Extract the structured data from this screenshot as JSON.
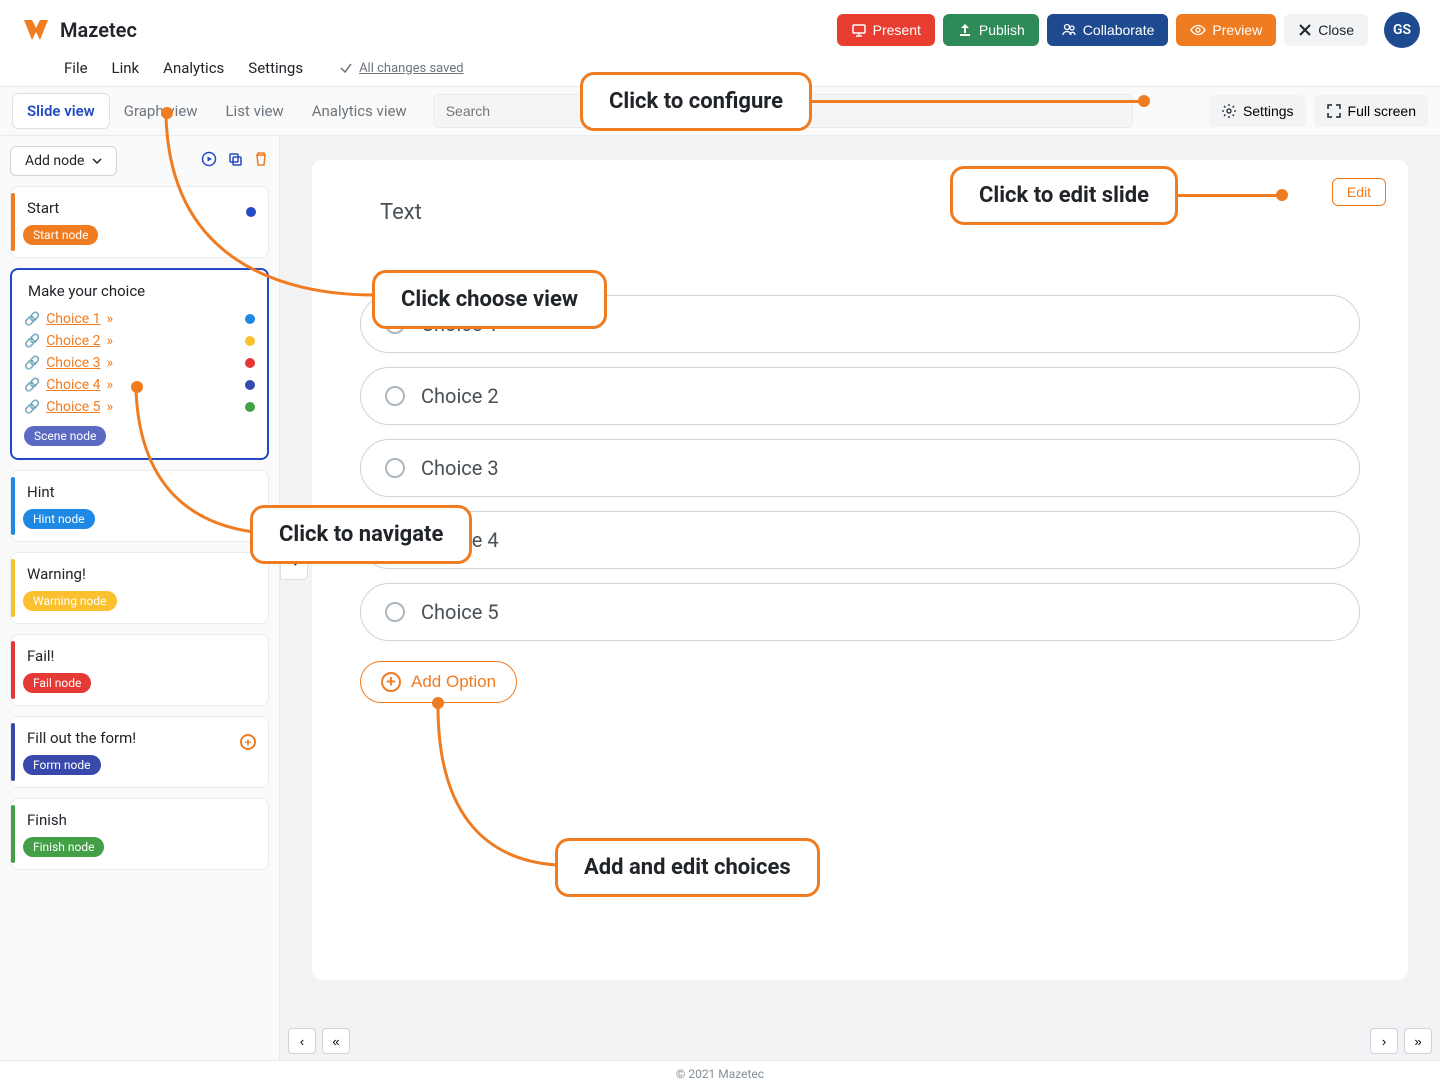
{
  "brand": "Mazetec",
  "topButtons": {
    "present": "Present",
    "publish": "Publish",
    "collaborate": "Collaborate",
    "preview": "Preview",
    "close": "Close"
  },
  "avatar": "GS",
  "menu": {
    "file": "File",
    "link": "Link",
    "analytics": "Analytics",
    "settings": "Settings"
  },
  "savedText": "All changes saved",
  "viewTabs": {
    "slide": "Slide view",
    "graph": "Graph view",
    "list": "List view",
    "analytics": "Analytics view"
  },
  "searchPlaceholder": "Search",
  "rightTools": {
    "settings": "Settings",
    "fullscreen": "Full screen"
  },
  "addNode": "Add node",
  "nodes": {
    "start": {
      "title": "Start",
      "badge": "Start node",
      "badgeColor": "#f07c22",
      "border": "#f07c22",
      "dot": "#2449c4"
    },
    "scene": {
      "title": "Make your choice",
      "badge": "Scene node",
      "badgeColor": "#5c6ac4",
      "border": "#2449c4",
      "choices": [
        {
          "label": "Choice 1",
          "dot": "#1e88e5"
        },
        {
          "label": "Choice 2",
          "dot": "#fbc02d"
        },
        {
          "label": "Choice 3",
          "dot": "#e53935"
        },
        {
          "label": "Choice 4",
          "dot": "#3949ab"
        },
        {
          "label": "Choice 5",
          "dot": "#43a047"
        }
      ]
    },
    "hint": {
      "title": "Hint",
      "badge": "Hint node",
      "badgeColor": "#1e88e5",
      "border": "#1e88e5"
    },
    "warning": {
      "title": "Warning!",
      "badge": "Warning node",
      "badgeColor": "#fbc02d",
      "border": "#fbc02d"
    },
    "fail": {
      "title": "Fail!",
      "badge": "Fail node",
      "badgeColor": "#e53935",
      "border": "#e53935"
    },
    "form": {
      "title": "Fill out the form!",
      "badge": "Form node",
      "badgeColor": "#3949ab",
      "border": "#3949ab"
    },
    "finish": {
      "title": "Finish",
      "badge": "Finish node",
      "badgeColor": "#43a047",
      "border": "#43a047"
    }
  },
  "slide": {
    "text": "Text",
    "editLabel": "Edit",
    "options": [
      "Choice 1",
      "Choice 2",
      "Choice 3",
      "Choice 4",
      "Choice 5"
    ],
    "addOption": "Add Option"
  },
  "callouts": {
    "configure": "Click to configure",
    "editSlide": "Click to edit slide",
    "chooseView": "Click choose view",
    "navigate": "Click to navigate",
    "addEdit": "Add and edit choices"
  },
  "footer": "© 2021 Mazetec",
  "colors": {
    "orange": "#f07c22",
    "blue": "#2449c4"
  }
}
